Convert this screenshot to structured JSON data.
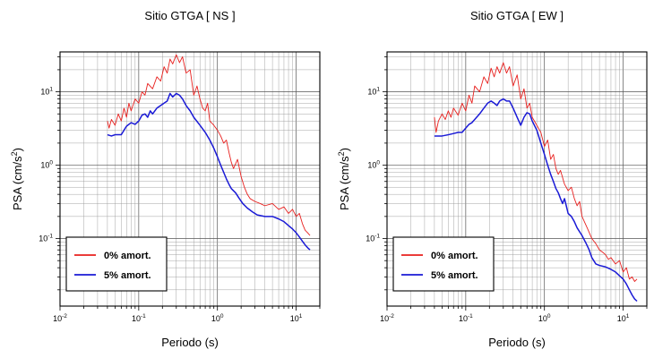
{
  "chart_data": [
    {
      "type": "line",
      "title": "Sitio GTGA [ NS ]",
      "xlabel": "Periodo (s)",
      "ylabel_main": "PSA (cm/s",
      "ylabel_sup": "2",
      "ylabel_close": ")",
      "xscale": "log",
      "yscale": "log",
      "xlim": [
        0.01,
        20
      ],
      "ylim": [
        0.012,
        35
      ],
      "grid": true,
      "legend_position": "bottom-left",
      "x_ticks": [
        {
          "base": "10",
          "exp": "-2"
        },
        {
          "base": "10",
          "exp": "-1"
        },
        {
          "base": "10",
          "exp": "0"
        },
        {
          "base": "10",
          "exp": "1"
        }
      ],
      "y_ticks": [
        {
          "base": "10",
          "exp": "-1"
        },
        {
          "base": "10",
          "exp": "0"
        },
        {
          "base": "10",
          "exp": "1"
        }
      ],
      "series": [
        {
          "name": "0% amort.",
          "color": "#e8201e",
          "points": [
            [
              0.04,
              4.0
            ],
            [
              0.042,
              3.2
            ],
            [
              0.045,
              4.2
            ],
            [
              0.05,
              3.5
            ],
            [
              0.055,
              5.0
            ],
            [
              0.06,
              4.0
            ],
            [
              0.065,
              6.0
            ],
            [
              0.07,
              4.5
            ],
            [
              0.075,
              7.0
            ],
            [
              0.08,
              5.5
            ],
            [
              0.09,
              8.0
            ],
            [
              0.1,
              7.0
            ],
            [
              0.11,
              10.0
            ],
            [
              0.12,
              9.0
            ],
            [
              0.13,
              13.0
            ],
            [
              0.15,
              11.0
            ],
            [
              0.17,
              16.0
            ],
            [
              0.19,
              14.0
            ],
            [
              0.21,
              22.0
            ],
            [
              0.23,
              18.0
            ],
            [
              0.25,
              28.0
            ],
            [
              0.27,
              24.0
            ],
            [
              0.3,
              32.0
            ],
            [
              0.33,
              25.0
            ],
            [
              0.36,
              30.0
            ],
            [
              0.4,
              18.0
            ],
            [
              0.45,
              20.0
            ],
            [
              0.5,
              9.0
            ],
            [
              0.55,
              12.0
            ],
            [
              0.6,
              8.0
            ],
            [
              0.65,
              6.0
            ],
            [
              0.7,
              5.5
            ],
            [
              0.75,
              7.0
            ],
            [
              0.8,
              4.0
            ],
            [
              0.9,
              3.5
            ],
            [
              1.0,
              3.0
            ],
            [
              1.1,
              2.5
            ],
            [
              1.2,
              2.0
            ],
            [
              1.3,
              2.2
            ],
            [
              1.4,
              1.5
            ],
            [
              1.5,
              1.1
            ],
            [
              1.6,
              0.9
            ],
            [
              1.8,
              1.2
            ],
            [
              2.0,
              0.7
            ],
            [
              2.2,
              0.5
            ],
            [
              2.4,
              0.4
            ],
            [
              2.6,
              0.35
            ],
            [
              3.0,
              0.32
            ],
            [
              3.5,
              0.3
            ],
            [
              4.0,
              0.28
            ],
            [
              5.0,
              0.3
            ],
            [
              6.0,
              0.25
            ],
            [
              7.0,
              0.27
            ],
            [
              8.0,
              0.22
            ],
            [
              9.0,
              0.25
            ],
            [
              10.0,
              0.2
            ],
            [
              11.0,
              0.22
            ],
            [
              12.0,
              0.16
            ],
            [
              13.0,
              0.13
            ],
            [
              14.0,
              0.12
            ],
            [
              15.0,
              0.11
            ]
          ]
        },
        {
          "name": "5% amort.",
          "color": "#1a1ad6",
          "points": [
            [
              0.04,
              2.6
            ],
            [
              0.045,
              2.5
            ],
            [
              0.05,
              2.6
            ],
            [
              0.06,
              2.6
            ],
            [
              0.065,
              3.0
            ],
            [
              0.07,
              3.4
            ],
            [
              0.08,
              3.8
            ],
            [
              0.09,
              3.6
            ],
            [
              0.1,
              4.0
            ],
            [
              0.11,
              4.8
            ],
            [
              0.12,
              5.0
            ],
            [
              0.13,
              4.5
            ],
            [
              0.14,
              5.5
            ],
            [
              0.15,
              5.0
            ],
            [
              0.17,
              6.0
            ],
            [
              0.19,
              6.5
            ],
            [
              0.21,
              7.0
            ],
            [
              0.23,
              7.5
            ],
            [
              0.25,
              9.5
            ],
            [
              0.27,
              8.5
            ],
            [
              0.3,
              9.5
            ],
            [
              0.33,
              9.0
            ],
            [
              0.36,
              8.0
            ],
            [
              0.4,
              6.5
            ],
            [
              0.45,
              5.5
            ],
            [
              0.5,
              4.5
            ],
            [
              0.6,
              3.5
            ],
            [
              0.7,
              2.8
            ],
            [
              0.8,
              2.2
            ],
            [
              0.9,
              1.7
            ],
            [
              1.0,
              1.3
            ],
            [
              1.1,
              1.0
            ],
            [
              1.2,
              0.8
            ],
            [
              1.3,
              0.65
            ],
            [
              1.4,
              0.55
            ],
            [
              1.5,
              0.48
            ],
            [
              1.7,
              0.42
            ],
            [
              1.9,
              0.35
            ],
            [
              2.1,
              0.3
            ],
            [
              2.4,
              0.26
            ],
            [
              2.8,
              0.23
            ],
            [
              3.2,
              0.21
            ],
            [
              4.0,
              0.2
            ],
            [
              5.0,
              0.2
            ],
            [
              6.0,
              0.185
            ],
            [
              7.0,
              0.17
            ],
            [
              8.0,
              0.15
            ],
            [
              9.0,
              0.135
            ],
            [
              10.0,
              0.12
            ],
            [
              11.0,
              0.105
            ],
            [
              12.0,
              0.092
            ],
            [
              13.0,
              0.082
            ],
            [
              14.0,
              0.075
            ],
            [
              15.0,
              0.07
            ]
          ]
        }
      ]
    },
    {
      "type": "line",
      "title": "Sitio GTGA [ EW ]",
      "xlabel": "Periodo (s)",
      "ylabel_main": "PSA (cm/s",
      "ylabel_sup": "2",
      "ylabel_close": ")",
      "xscale": "log",
      "yscale": "log",
      "xlim": [
        0.01,
        20
      ],
      "ylim": [
        0.012,
        35
      ],
      "grid": true,
      "legend_position": "bottom-left",
      "x_ticks": [
        {
          "base": "10",
          "exp": "-2"
        },
        {
          "base": "10",
          "exp": "-1"
        },
        {
          "base": "10",
          "exp": "0"
        },
        {
          "base": "10",
          "exp": "1"
        }
      ],
      "y_ticks": [
        {
          "base": "10",
          "exp": "-1"
        },
        {
          "base": "10",
          "exp": "0"
        },
        {
          "base": "10",
          "exp": "1"
        }
      ],
      "series": [
        {
          "name": "0% amort.",
          "color": "#e8201e",
          "points": [
            [
              0.04,
              4.5
            ],
            [
              0.042,
              2.8
            ],
            [
              0.045,
              4.0
            ],
            [
              0.05,
              5.0
            ],
            [
              0.055,
              4.2
            ],
            [
              0.06,
              5.5
            ],
            [
              0.065,
              4.5
            ],
            [
              0.07,
              6.0
            ],
            [
              0.08,
              4.8
            ],
            [
              0.09,
              7.0
            ],
            [
              0.1,
              5.5
            ],
            [
              0.11,
              9.0
            ],
            [
              0.12,
              7.0
            ],
            [
              0.13,
              12.0
            ],
            [
              0.15,
              10.0
            ],
            [
              0.17,
              16.0
            ],
            [
              0.19,
              13.0
            ],
            [
              0.21,
              21.0
            ],
            [
              0.23,
              16.0
            ],
            [
              0.25,
              22.0
            ],
            [
              0.27,
              18.0
            ],
            [
              0.3,
              25.0
            ],
            [
              0.33,
              18.0
            ],
            [
              0.36,
              22.0
            ],
            [
              0.4,
              12.0
            ],
            [
              0.45,
              17.0
            ],
            [
              0.5,
              8.0
            ],
            [
              0.55,
              11.0
            ],
            [
              0.6,
              6.0
            ],
            [
              0.65,
              7.0
            ],
            [
              0.7,
              4.5
            ],
            [
              0.8,
              3.5
            ],
            [
              0.9,
              2.8
            ],
            [
              1.0,
              1.8
            ],
            [
              1.1,
              2.2
            ],
            [
              1.2,
              1.2
            ],
            [
              1.3,
              1.4
            ],
            [
              1.4,
              0.9
            ],
            [
              1.5,
              0.75
            ],
            [
              1.6,
              0.85
            ],
            [
              1.8,
              0.55
            ],
            [
              2.0,
              0.45
            ],
            [
              2.2,
              0.5
            ],
            [
              2.4,
              0.35
            ],
            [
              2.6,
              0.28
            ],
            [
              2.8,
              0.32
            ],
            [
              3.0,
              0.2
            ],
            [
              3.3,
              0.16
            ],
            [
              3.6,
              0.13
            ],
            [
              4.0,
              0.1
            ],
            [
              4.5,
              0.085
            ],
            [
              5.0,
              0.07
            ],
            [
              5.5,
              0.065
            ],
            [
              6.0,
              0.06
            ],
            [
              6.5,
              0.052
            ],
            [
              7.0,
              0.055
            ],
            [
              8.0,
              0.045
            ],
            [
              9.0,
              0.05
            ],
            [
              10.0,
              0.035
            ],
            [
              11.0,
              0.04
            ],
            [
              12.0,
              0.028
            ],
            [
              13.0,
              0.03
            ],
            [
              14.0,
              0.026
            ],
            [
              15.0,
              0.028
            ]
          ]
        },
        {
          "name": "5% amort.",
          "color": "#1a1ad6",
          "points": [
            [
              0.04,
              2.5
            ],
            [
              0.05,
              2.5
            ],
            [
              0.06,
              2.6
            ],
            [
              0.07,
              2.7
            ],
            [
              0.08,
              2.8
            ],
            [
              0.09,
              2.8
            ],
            [
              0.1,
              3.2
            ],
            [
              0.11,
              3.6
            ],
            [
              0.12,
              3.8
            ],
            [
              0.13,
              4.2
            ],
            [
              0.15,
              5.0
            ],
            [
              0.17,
              6.0
            ],
            [
              0.19,
              7.0
            ],
            [
              0.21,
              7.5
            ],
            [
              0.23,
              7.0
            ],
            [
              0.25,
              6.5
            ],
            [
              0.27,
              7.5
            ],
            [
              0.3,
              8.0
            ],
            [
              0.33,
              7.5
            ],
            [
              0.36,
              7.5
            ],
            [
              0.4,
              6.0
            ],
            [
              0.45,
              4.5
            ],
            [
              0.5,
              3.5
            ],
            [
              0.55,
              4.5
            ],
            [
              0.6,
              5.2
            ],
            [
              0.65,
              5.0
            ],
            [
              0.7,
              4.0
            ],
            [
              0.8,
              3.0
            ],
            [
              0.9,
              2.0
            ],
            [
              1.0,
              1.4
            ],
            [
              1.1,
              1.0
            ],
            [
              1.2,
              0.75
            ],
            [
              1.3,
              0.6
            ],
            [
              1.4,
              0.48
            ],
            [
              1.5,
              0.42
            ],
            [
              1.6,
              0.35
            ],
            [
              1.7,
              0.3
            ],
            [
              1.8,
              0.35
            ],
            [
              2.0,
              0.22
            ],
            [
              2.2,
              0.2
            ],
            [
              2.4,
              0.17
            ],
            [
              2.6,
              0.14
            ],
            [
              3.0,
              0.11
            ],
            [
              3.4,
              0.085
            ],
            [
              3.7,
              0.07
            ],
            [
              4.0,
              0.055
            ],
            [
              4.5,
              0.045
            ],
            [
              5.0,
              0.043
            ],
            [
              6.0,
              0.041
            ],
            [
              7.0,
              0.038
            ],
            [
              8.0,
              0.035
            ],
            [
              9.0,
              0.031
            ],
            [
              10.0,
              0.028
            ],
            [
              11.0,
              0.024
            ],
            [
              12.0,
              0.02
            ],
            [
              13.0,
              0.017
            ],
            [
              14.0,
              0.015
            ],
            [
              15.0,
              0.014
            ]
          ]
        }
      ]
    }
  ]
}
